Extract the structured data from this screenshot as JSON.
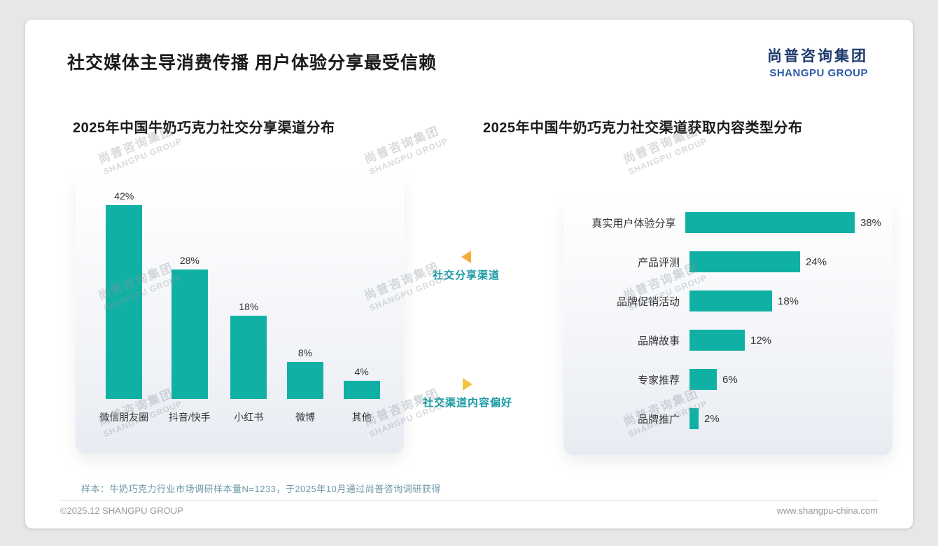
{
  "header": {
    "title": "社交媒体主导消费传播 用户体验分享最受信赖",
    "logo_cn": "尚普咨询集团",
    "logo_en": "SHANGPU GROUP"
  },
  "chart_data": [
    {
      "type": "bar",
      "orientation": "vertical",
      "title": "2025年中国牛奶巧克力社交分享渠道分布",
      "categories": [
        "微信朋友圈",
        "抖音/快手",
        "小红书",
        "微博",
        "其他"
      ],
      "values": [
        42,
        28,
        18,
        8,
        4
      ],
      "unit": "%",
      "xlabel": "",
      "ylabel": "",
      "grid": false,
      "value_labels": "above bars",
      "bar_color": "#11b0a5"
    },
    {
      "type": "bar",
      "orientation": "horizontal",
      "title": "2025年中国牛奶巧克力社交渠道获取内容类型分布",
      "categories": [
        "真实用户体验分享",
        "产品评测",
        "品牌促销活动",
        "品牌故事",
        "专家推荐",
        "品牌推广"
      ],
      "values": [
        38,
        24,
        18,
        12,
        6,
        2
      ],
      "unit": "%",
      "xlabel": "",
      "ylabel": "",
      "grid": false,
      "value_labels": "right of bars",
      "bar_color": "#11b0a5"
    }
  ],
  "annotations": {
    "left_label": "社交分享渠道",
    "right_label": "社交渠道内容偏好"
  },
  "watermark": {
    "line1": "尚普咨询集团",
    "line2": "SHANGPU GROUP"
  },
  "footer": {
    "sample_note": "样本：牛奶巧克力行业市场调研样本量N=1233，于2025年10月通过尚普咨询调研获得",
    "copyright": "©2025.12 SHANGPU GROUP",
    "website": "www.shangpu-china.com"
  },
  "colors": {
    "bar_teal": "#11b0a5",
    "annotation_teal": "#1899a3",
    "triangle_left": "#f2ae3c",
    "triangle_right": "#f5c242",
    "logo_navy": "#1e3a6c",
    "logo_blue": "#2c5ba6"
  }
}
